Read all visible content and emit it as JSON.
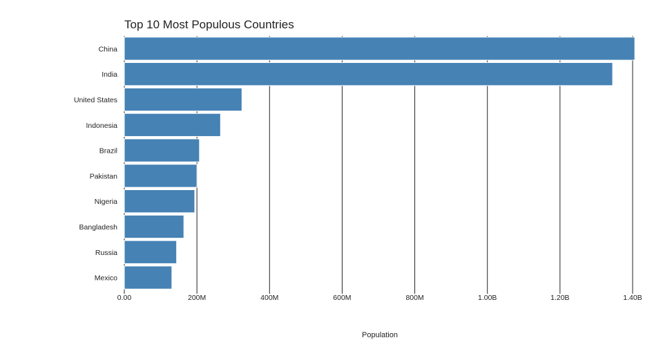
{
  "chart_data": {
    "type": "bar",
    "orientation": "horizontal",
    "title": "Top 10 Most Populous Countries",
    "xlabel": "Population",
    "ylabel": "",
    "categories": [
      "China",
      "India",
      "United States",
      "Indonesia",
      "Brazil",
      "Pakistan",
      "Nigeria",
      "Bangladesh",
      "Russia",
      "Mexico"
    ],
    "values": [
      1406000000,
      1345000000,
      324000000,
      265000000,
      207000000,
      200000000,
      194000000,
      164000000,
      144000000,
      131000000
    ],
    "xlim": [
      0,
      1400000000
    ],
    "xticks": [
      0,
      200000000,
      400000000,
      600000000,
      800000000,
      1000000000,
      1200000000,
      1400000000
    ],
    "xtick_labels": [
      "0.00",
      "200M",
      "400M",
      "600M",
      "800M",
      "1.00B",
      "1.20B",
      "1.40B"
    ],
    "grid": true,
    "bar_color": "#4682b4"
  }
}
